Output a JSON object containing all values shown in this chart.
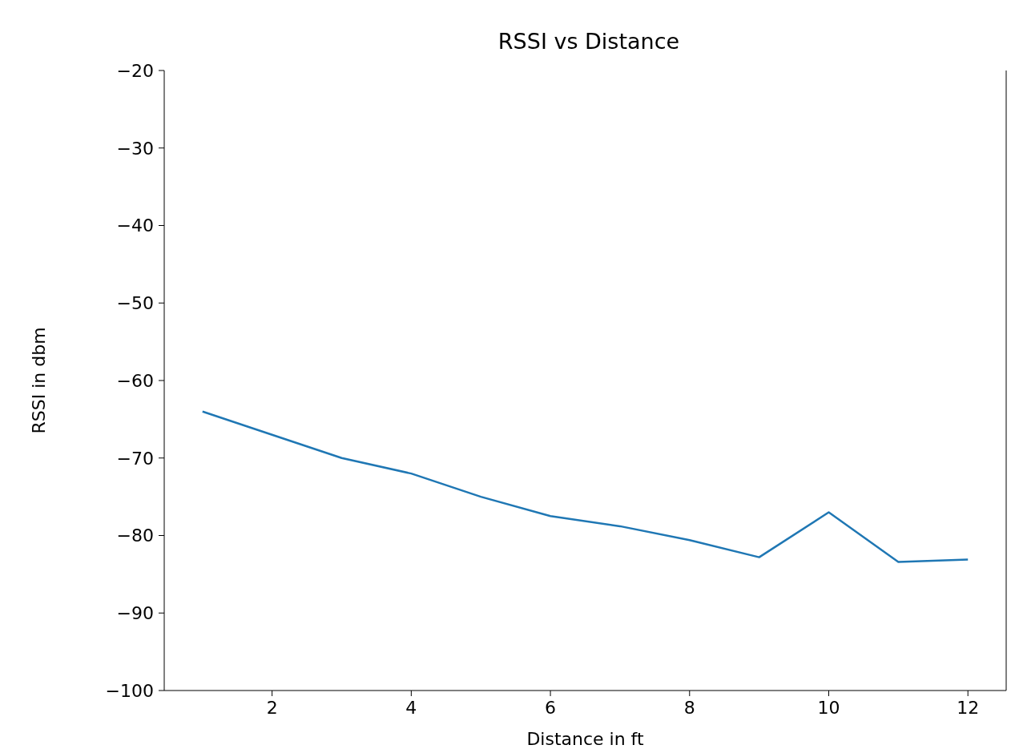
{
  "chart_data": {
    "type": "line",
    "title": "RSSI vs Distance",
    "xlabel": "Distance in ft",
    "ylabel": "RSSI in dbm",
    "x": [
      1,
      2,
      3,
      4,
      5,
      6,
      7,
      8,
      9,
      10,
      11,
      12
    ],
    "series": [
      {
        "color": "#1f77b4",
        "values": [
          -64,
          -67,
          -70,
          -72,
          -75,
          -77.5,
          -78.8,
          -80.6,
          -82.8,
          -77,
          -83.4,
          -83.1
        ]
      }
    ],
    "xlim": [
      0.45,
      12.55
    ],
    "xticks": [
      2,
      4,
      6,
      8,
      10,
      12
    ],
    "ylim": [
      -100,
      -20
    ],
    "yticks": [
      -100,
      -90,
      -80,
      -70,
      -60,
      -50,
      -40,
      -30,
      -20
    ],
    "grid": false,
    "legend": false,
    "marker": "none",
    "line_style": "solid"
  }
}
